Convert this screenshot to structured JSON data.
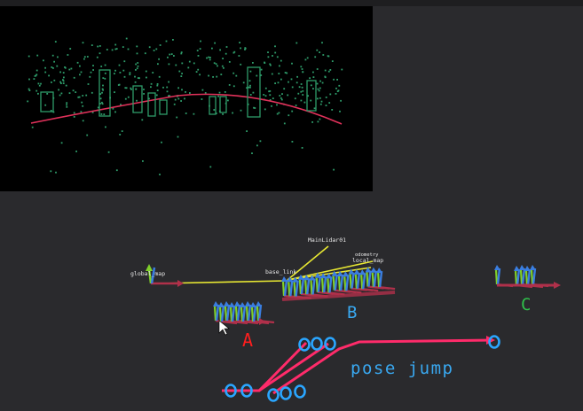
{
  "scan_view": {
    "point_color": "#2e9c6a",
    "path_color": "#e0315a",
    "box_color": "#2e9c6a"
  },
  "tf_frames": {
    "global": "global_map",
    "base": "base_link",
    "lidar": "MainLidar01",
    "odom": "odometry",
    "local": "local_map"
  },
  "clusters": {
    "a": "A",
    "b": "B",
    "c": "C"
  },
  "annotation": {
    "pose_jump": "pose jump"
  },
  "colors": {
    "label_a": "#ff1e1e",
    "label_b": "#39a8f0",
    "label_c": "#2fbf4a",
    "jump_line": "#ff2b6a",
    "jump_marker": "#2aa6ff",
    "axis_x": "#b0304a",
    "axis_y": "#7fd02a",
    "axis_z": "#3a7ee0",
    "tf_link": "#e8e832"
  }
}
